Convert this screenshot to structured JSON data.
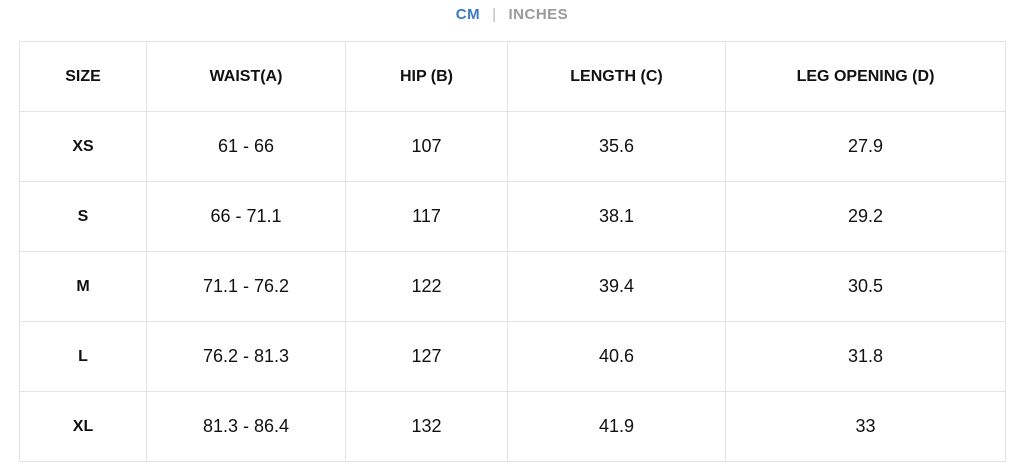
{
  "toggle": {
    "units": [
      "CM",
      "INCHES"
    ],
    "separator": "|"
  },
  "table": {
    "header": [
      "SIZE",
      "WAIST(A)",
      "HIP (B)",
      "LENGTH (C)",
      "LEG OPENING (D)"
    ],
    "rows": [
      [
        "XS",
        "61 - 66",
        "107",
        "35.6",
        "27.9"
      ],
      [
        "S",
        "66 - 71.1",
        "117",
        "38.1",
        "29.2"
      ],
      [
        "M",
        "71.1 - 76.2",
        "122",
        "39.4",
        "30.5"
      ],
      [
        "L",
        "76.2 - 81.3",
        "127",
        "40.6",
        "31.8"
      ],
      [
        "XL",
        "81.3 - 86.4",
        "132",
        "41.9",
        "33"
      ]
    ]
  }
}
